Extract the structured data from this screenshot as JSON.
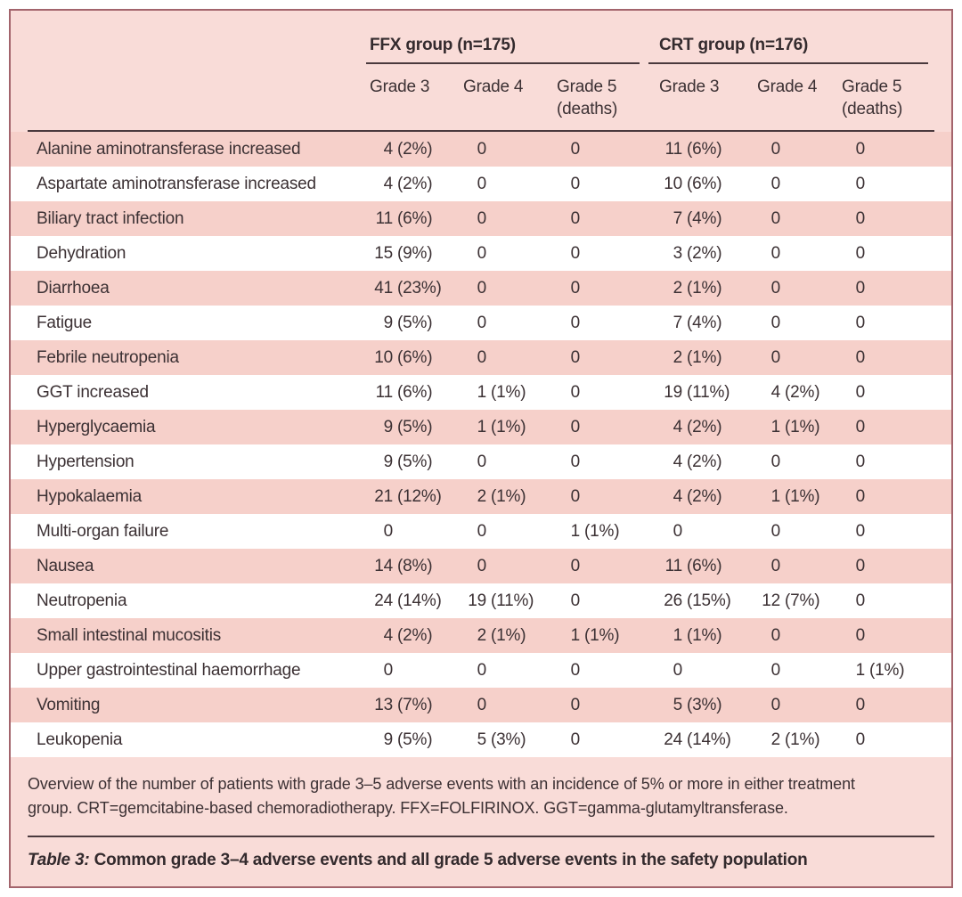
{
  "colors": {
    "panel_background": "#f9dcd8",
    "stripe_pink": "#f6d0ca",
    "stripe_white": "#ffffff",
    "border": "#a3646c",
    "rule": "#4a393d",
    "text": "#3c3134"
  },
  "table": {
    "groups": [
      {
        "label": "FFX group (n=175)",
        "columns": [
          "Grade 3",
          "Grade 4",
          "Grade 5 (deaths)"
        ]
      },
      {
        "label": "CRT group (n=176)",
        "columns": [
          "Grade 3",
          "Grade 4",
          "Grade 5 (deaths)"
        ]
      }
    ],
    "rows": [
      {
        "event": "Alanine aminotransferase increased",
        "values": [
          "4 (2%)",
          "0",
          "0",
          "11 (6%)",
          "0",
          "0"
        ]
      },
      {
        "event": "Aspartate aminotransferase increased",
        "values": [
          "4 (2%)",
          "0",
          "0",
          "10 (6%)",
          "0",
          "0"
        ]
      },
      {
        "event": "Biliary tract infection",
        "values": [
          "11 (6%)",
          "0",
          "0",
          "7 (4%)",
          "0",
          "0"
        ]
      },
      {
        "event": "Dehydration",
        "values": [
          "15 (9%)",
          "0",
          "0",
          "3 (2%)",
          "0",
          "0"
        ]
      },
      {
        "event": "Diarrhoea",
        "values": [
          "41 (23%)",
          "0",
          "0",
          "2 (1%)",
          "0",
          "0"
        ]
      },
      {
        "event": "Fatigue",
        "values": [
          "9 (5%)",
          "0",
          "0",
          "7 (4%)",
          "0",
          "0"
        ]
      },
      {
        "event": "Febrile neutropenia",
        "values": [
          "10 (6%)",
          "0",
          "0",
          "2 (1%)",
          "0",
          "0"
        ]
      },
      {
        "event": "GGT increased",
        "values": [
          "11 (6%)",
          "1 (1%)",
          "0",
          "19 (11%)",
          "4 (2%)",
          "0"
        ]
      },
      {
        "event": "Hyperglycaemia",
        "values": [
          "9 (5%)",
          "1 (1%)",
          "0",
          "4 (2%)",
          "1 (1%)",
          "0"
        ]
      },
      {
        "event": "Hypertension",
        "values": [
          "9 (5%)",
          "0",
          "0",
          "4 (2%)",
          "0",
          "0"
        ]
      },
      {
        "event": "Hypokalaemia",
        "values": [
          "21 (12%)",
          "2 (1%)",
          "0",
          "4 (2%)",
          "1 (1%)",
          "0"
        ]
      },
      {
        "event": "Multi-organ failure",
        "values": [
          "0",
          "0",
          "1 (1%)",
          "0",
          "0",
          "0"
        ]
      },
      {
        "event": "Nausea",
        "values": [
          "14 (8%)",
          "0",
          "0",
          "11 (6%)",
          "0",
          "0"
        ]
      },
      {
        "event": "Neutropenia",
        "values": [
          "24 (14%)",
          "19 (11%)",
          "0",
          "26 (15%)",
          "12 (7%)",
          "0"
        ]
      },
      {
        "event": "Small intestinal mucositis",
        "values": [
          "4 (2%)",
          "2 (1%)",
          "1 (1%)",
          "1 (1%)",
          "0",
          "0"
        ]
      },
      {
        "event": "Upper gastrointestinal haemorrhage",
        "values": [
          "0",
          "0",
          "0",
          "0",
          "0",
          "1 (1%)"
        ]
      },
      {
        "event": "Vomiting",
        "values": [
          "13 (7%)",
          "0",
          "0",
          "5 (3%)",
          "0",
          "0"
        ]
      },
      {
        "event": "Leukopenia",
        "values": [
          "9 (5%)",
          "5 (3%)",
          "0",
          "24 (14%)",
          "2 (1%)",
          "0"
        ]
      }
    ]
  },
  "footnote": "Overview of the number of patients with grade 3–5 adverse events with an incidence of 5% or more in either treatment group. CRT=gemcitabine-based chemoradiotherapy. FFX=FOLFIRINOX. GGT=gamma-glutamyltransferase.",
  "caption": {
    "prefix": "Table 3:",
    "text": " Common grade 3–4 adverse events and all grade 5 adverse events in the safety population"
  }
}
